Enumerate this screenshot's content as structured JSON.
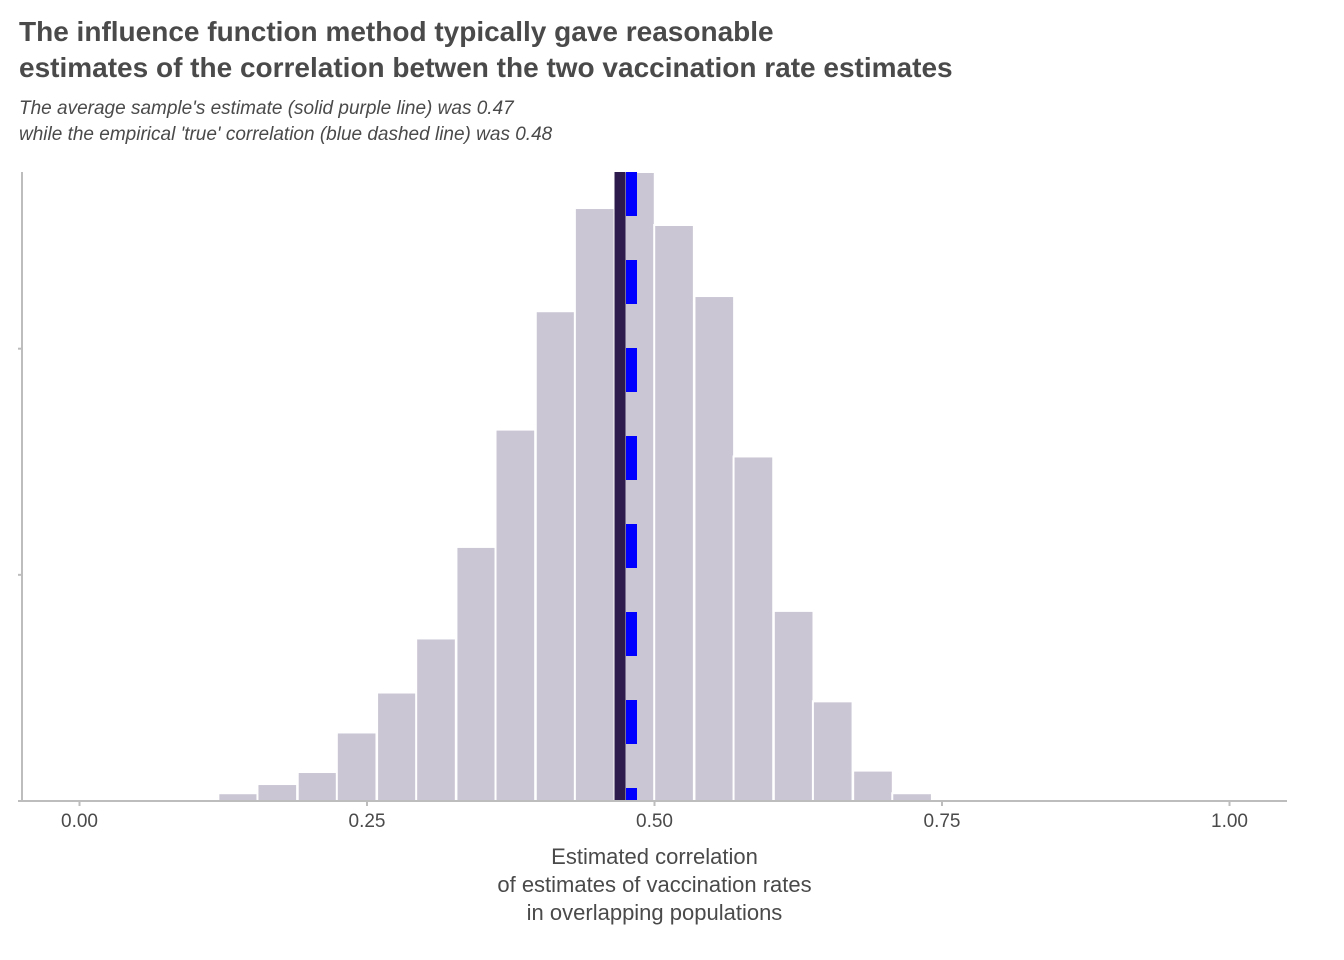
{
  "chart_data": {
    "type": "bar",
    "title": [
      "The influence function method typically gave reasonable",
      "estimates of the correlation betwen the two vaccination rate estimates"
    ],
    "subtitle": [
      "The average sample's estimate (solid purple line) was 0.47",
      "while the empirical 'true' correlation (blue dashed line) was 0.48"
    ],
    "xlabel": [
      "Estimated correlation",
      "of estimates of vaccination rates",
      "in overlapping populations"
    ],
    "ylabel": "",
    "xlim": [
      -0.05,
      1.05
    ],
    "ylim": [
      0,
      1780
    ],
    "x_ticks": [
      0.0,
      0.25,
      0.5,
      0.75,
      1.0
    ],
    "x_tick_labels": [
      "0.00",
      "0.25",
      "0.50",
      "0.75",
      "1.00"
    ],
    "y_ticks": [
      0,
      640,
      1280
    ],
    "y_tick_labels": [
      "",
      "",
      ""
    ],
    "bin_width": 0.0345,
    "bins": [
      {
        "center": 0.138,
        "count": 22
      },
      {
        "center": 0.172,
        "count": 48
      },
      {
        "center": 0.207,
        "count": 82
      },
      {
        "center": 0.241,
        "count": 194
      },
      {
        "center": 0.276,
        "count": 307
      },
      {
        "center": 0.31,
        "count": 460
      },
      {
        "center": 0.345,
        "count": 719
      },
      {
        "center": 0.379,
        "count": 1051
      },
      {
        "center": 0.414,
        "count": 1386
      },
      {
        "center": 0.448,
        "count": 1678
      },
      {
        "center": 0.483,
        "count": 1780
      },
      {
        "center": 0.517,
        "count": 1630
      },
      {
        "center": 0.552,
        "count": 1429
      },
      {
        "center": 0.586,
        "count": 975
      },
      {
        "center": 0.621,
        "count": 538
      },
      {
        "center": 0.655,
        "count": 282
      },
      {
        "center": 0.69,
        "count": 86
      },
      {
        "center": 0.724,
        "count": 22
      }
    ],
    "reference_lines": [
      {
        "name": "average sample estimate",
        "value": 0.47,
        "color": "#2d1b4e",
        "style": "solid"
      },
      {
        "name": "empirical true correlation",
        "value": 0.48,
        "color": "#0000ff",
        "style": "dashed"
      }
    ],
    "bar_color": "#cbc6d4",
    "grid": false
  }
}
